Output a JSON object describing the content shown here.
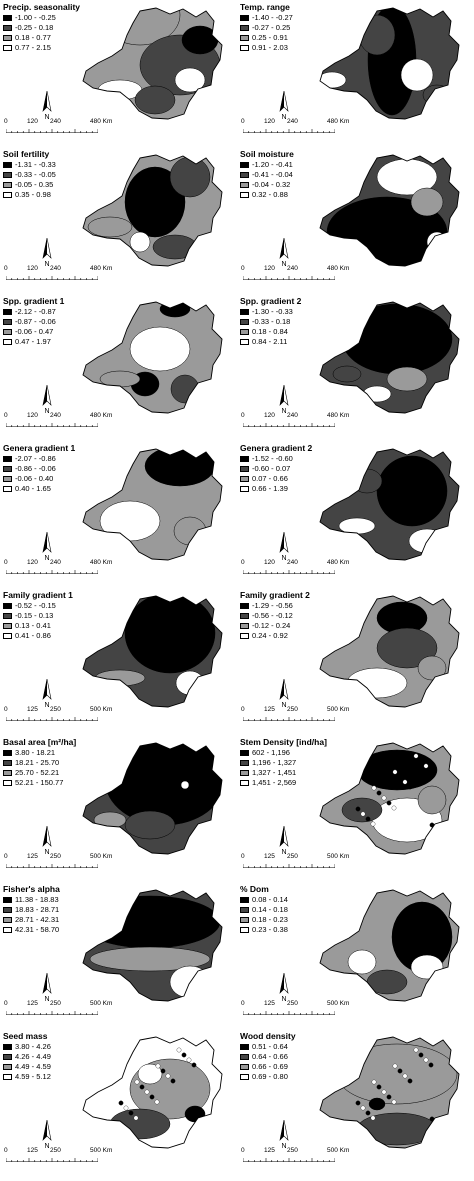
{
  "colors": {
    "class1": "#000000",
    "class2": "#444444",
    "class3": "#9a9a9a",
    "class4": "#ffffff",
    "outline": "#000000"
  },
  "north_label": "N",
  "scale_unit_suffix": "Km",
  "scales": {
    "a": [
      "0",
      "120",
      "240",
      "480 Km"
    ],
    "b": [
      "0",
      "125",
      "250",
      "500 Km"
    ]
  },
  "panels": [
    {
      "id": "precip-seasonality",
      "title": "Precip. seasonality",
      "scale": "a",
      "legend": [
        "-1.00 - -0.25",
        "-0.25 - 0.18",
        "0.18 - 0.77",
        "0.77 - 2.15"
      ]
    },
    {
      "id": "temp-range",
      "title": "Temp. range",
      "scale": "a",
      "legend": [
        "-1.40 - -0.27",
        "-0.27 - 0.25",
        "0.25 - 0.91",
        "0.91 - 2.03"
      ]
    },
    {
      "id": "soil-fertility",
      "title": "Soil fertility",
      "scale": "a",
      "legend": [
        "-1.31 - -0.33",
        "-0.33 - -0.05",
        "-0.05 - 0.35",
        "0.35 - 0.98"
      ]
    },
    {
      "id": "soil-moisture",
      "title": "Soil moisture",
      "scale": "a",
      "legend": [
        "-1.20 - -0.41",
        "-0.41 - -0.04",
        "-0.04 - 0.32",
        "0.32 - 0.88"
      ]
    },
    {
      "id": "spp-gradient-1",
      "title": "Spp. gradient 1",
      "scale": "a",
      "legend": [
        "-2.12 - -0.87",
        "-0.87 - -0.06",
        "-0.06 - 0.47",
        "0.47 - 1.97"
      ]
    },
    {
      "id": "spp-gradient-2",
      "title": "Spp. gradient 2",
      "scale": "a",
      "legend": [
        "-1.30 - -0.33",
        "-0.33 - 0.18",
        "0.18 - 0.84",
        "0.84 - 2.11"
      ]
    },
    {
      "id": "genera-gradient-1",
      "title": "Genera gradient 1",
      "scale": "a",
      "legend": [
        "-2.07 - -0.86",
        "-0.86 - -0.06",
        "-0.06 - 0.40",
        "0.40 - 1.65"
      ]
    },
    {
      "id": "genera-gradient-2",
      "title": "Genera gradient 2",
      "scale": "a",
      "legend": [
        "-1.52 - -0.60",
        "-0.60 - 0.07",
        "0.07 - 0.66",
        "0.66 - 1.39"
      ]
    },
    {
      "id": "family-gradient-1",
      "title": "Family gradient 1",
      "scale": "b",
      "legend": [
        "-0.52 - -0.15",
        "-0.15 - 0.13",
        "0.13 - 0.41",
        "0.41 - 0.86"
      ]
    },
    {
      "id": "family-gradient-2",
      "title": "Family gradient 2",
      "scale": "b",
      "legend": [
        "-1.29 - -0.56",
        "-0.56 - -0.12",
        "-0.12 - 0.24",
        "0.24 - 0.92"
      ]
    },
    {
      "id": "basal-area",
      "title": "Basal area [m²/ha]",
      "scale": "b",
      "legend": [
        "3.80 - 18.21",
        "18.21 - 25.70",
        "25.70 - 52.21",
        "52.21 - 150.77"
      ]
    },
    {
      "id": "stem-density",
      "title": "Stem Density [ind/ha]",
      "scale": "b",
      "legend": [
        "602 - 1,196",
        "1,196 - 1,327",
        "1,327 - 1,451",
        "1,451 - 2,569"
      ]
    },
    {
      "id": "fishers-alpha",
      "title": "Fisher's alpha",
      "scale": "b",
      "legend": [
        "11.38 - 18.83",
        "18.83 - 28.71",
        "28.71 - 42.31",
        "42.31 - 58.70"
      ]
    },
    {
      "id": "pct-dom",
      "title": "% Dom",
      "scale": "b",
      "legend": [
        "0.08 - 0.14",
        "0.14 - 0.18",
        "0.18 - 0.23",
        "0.23 - 0.38"
      ]
    },
    {
      "id": "seed-mass",
      "title": "Seed mass",
      "scale": "b",
      "legend": [
        "3.80 - 4.26",
        "4.26 - 4.49",
        "4.49 - 4.59",
        "4.59 - 5.12"
      ]
    },
    {
      "id": "wood-density",
      "title": "Wood density",
      "scale": "b",
      "legend": [
        "0.51 - 0.64",
        "0.64 - 0.66",
        "0.66 - 0.69",
        "0.69 - 0.80"
      ]
    }
  ]
}
